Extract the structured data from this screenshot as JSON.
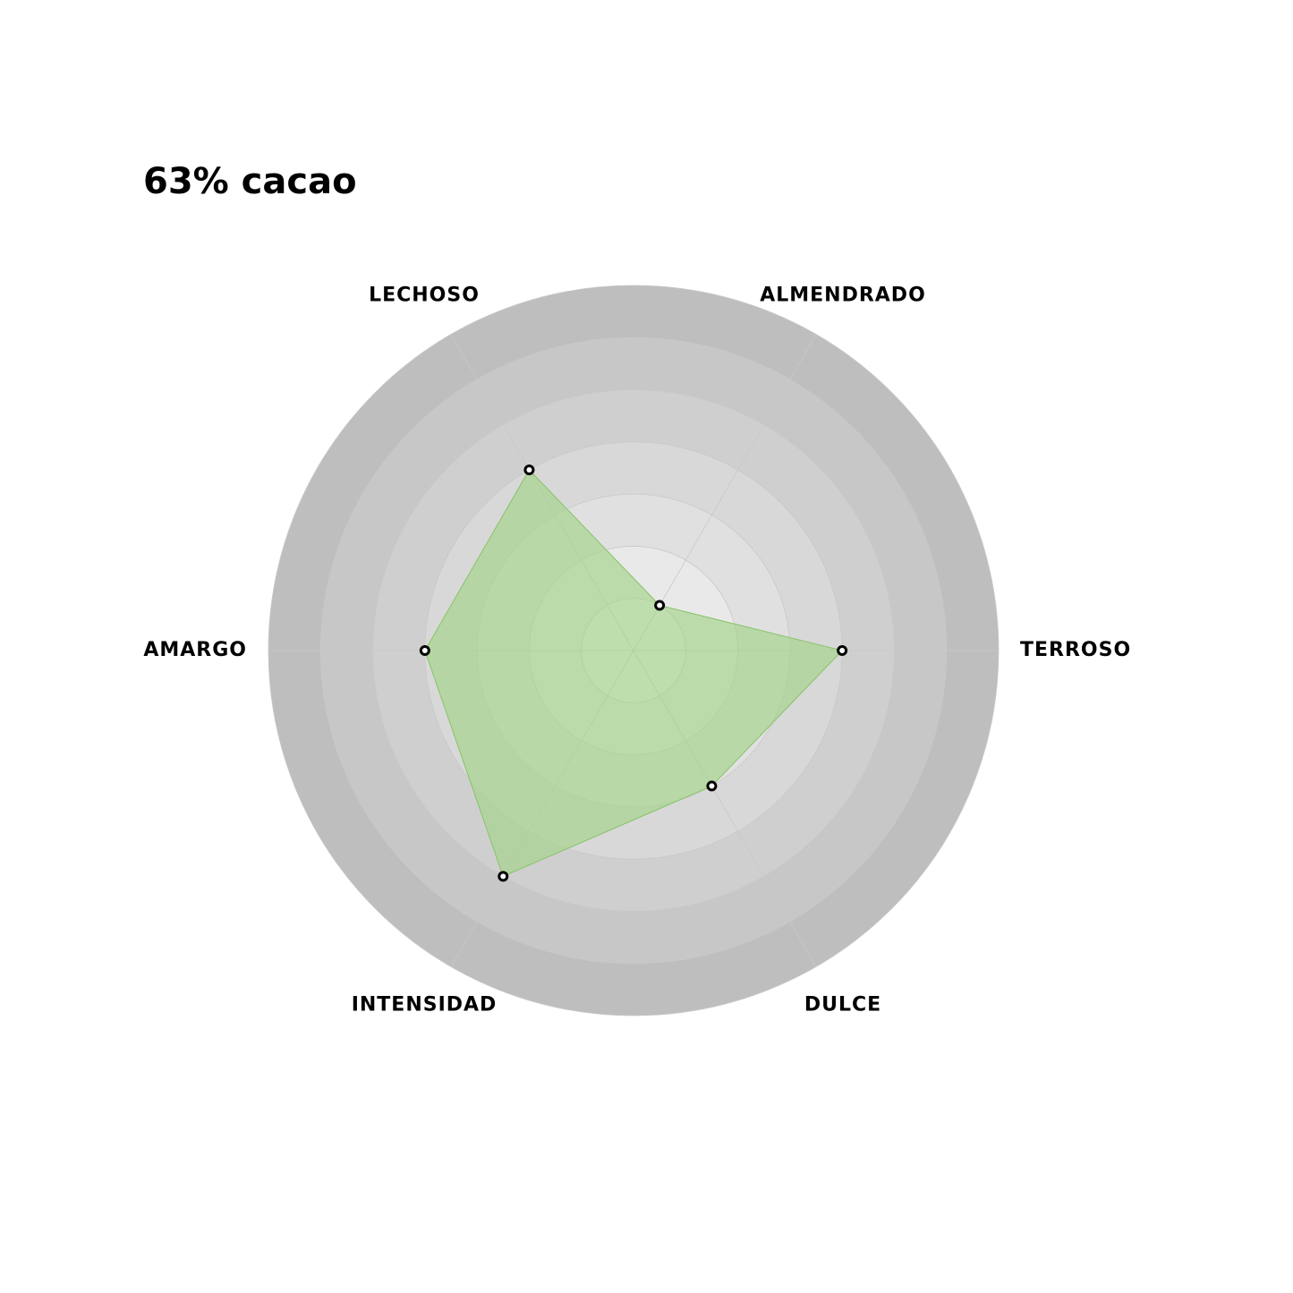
{
  "chart_data": {
    "type": "radar",
    "title": "63% cacao",
    "categories": [
      "ALMENDRADO",
      "TERROSO",
      "DULCE",
      "INTENSIDAD",
      "AMARGO",
      "LECHOSO"
    ],
    "values": [
      1,
      4,
      3,
      5,
      4,
      4
    ],
    "color": "#a3d487",
    "rlim": [
      0,
      7
    ],
    "rticks": [
      1,
      2,
      3,
      4,
      5,
      6,
      7
    ],
    "grid": true
  }
}
